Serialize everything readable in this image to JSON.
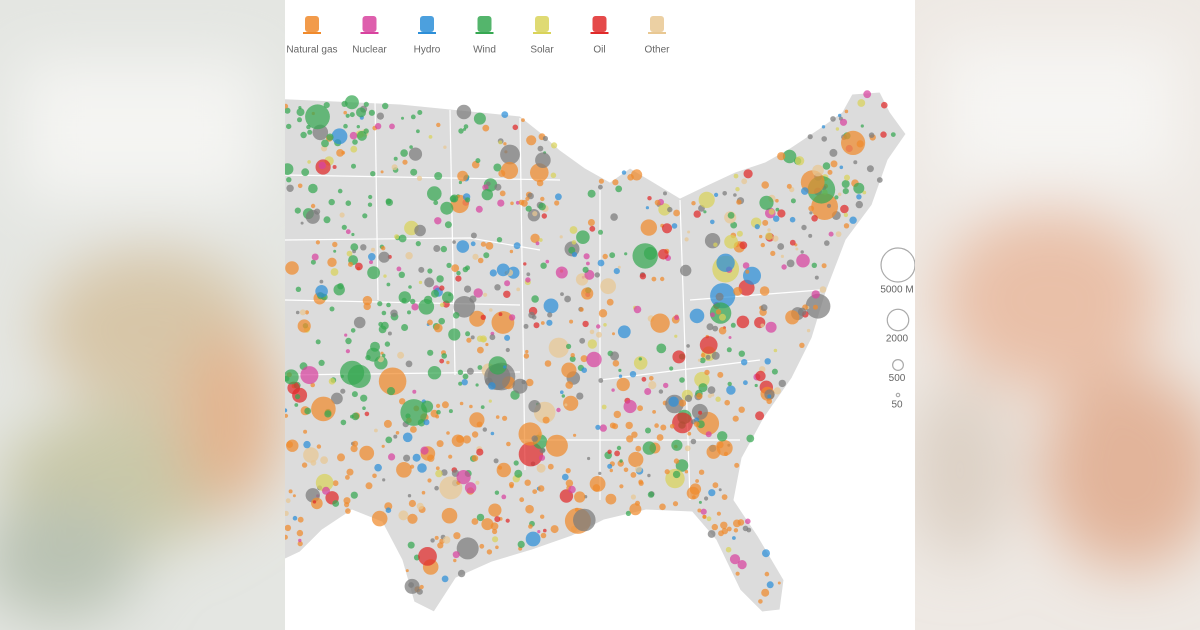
{
  "legend": [
    {
      "label": "Natural gas",
      "color": "#f08a2c"
    },
    {
      "label": "Nuclear",
      "color": "#d8439f"
    },
    {
      "label": "Hydro",
      "color": "#2d8fd8"
    },
    {
      "label": "Wind",
      "color": "#36a852"
    },
    {
      "label": "Solar",
      "color": "#d9d35a"
    },
    {
      "label": "Oil",
      "color": "#e02a2a"
    },
    {
      "label": "Other",
      "color": "#e9c893"
    }
  ],
  "size_legend": [
    {
      "value": 5000,
      "label": "5000 M"
    },
    2000,
    500,
    50
  ]
}
